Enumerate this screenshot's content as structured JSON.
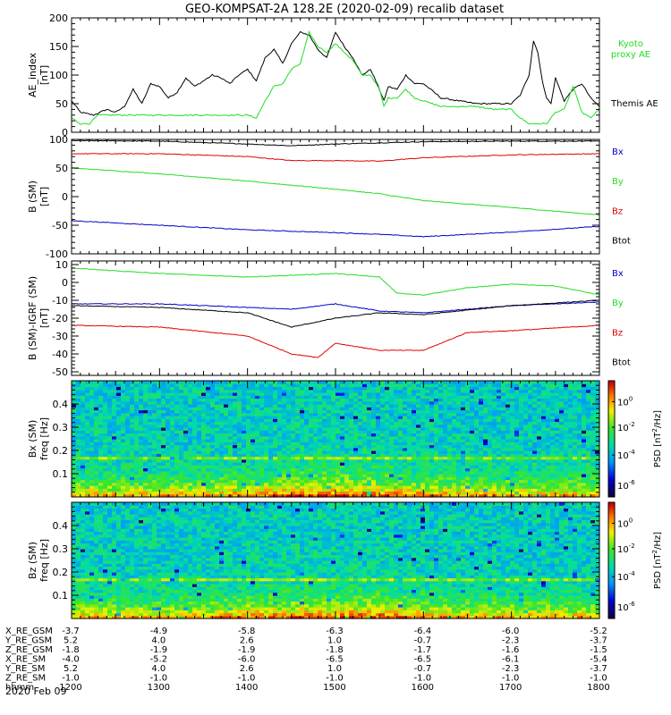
{
  "title": "GEO-KOMPSAT-2A 128.2E (2020-02-09) recalib dataset",
  "date_label": "2020 Feb 09",
  "colors": {
    "black": "#000000",
    "red": "#dd0000",
    "green": "#22dd22",
    "blue": "#0000cc"
  },
  "chart_data": [
    {
      "type": "line",
      "ylabel": "AE_index [nT]",
      "ylim": [
        0,
        200
      ],
      "yticks": [
        "0",
        "50",
        "100",
        "150",
        "200"
      ],
      "xlim": [
        1200,
        1800
      ],
      "legend": [
        "Kyoto proxy AE",
        "Themis AE"
      ],
      "series": [
        {
          "name": "Themis AE",
          "color": "#000000",
          "x": [
            1200,
            1210,
            1225,
            1240,
            1250,
            1260,
            1270,
            1280,
            1290,
            1300,
            1310,
            1320,
            1330,
            1340,
            1350,
            1360,
            1370,
            1380,
            1390,
            1400,
            1410,
            1420,
            1430,
            1440,
            1450,
            1460,
            1470,
            1480,
            1490,
            1500,
            1510,
            1520,
            1530,
            1540,
            1550,
            1555,
            1560,
            1570,
            1580,
            1590,
            1600,
            1620,
            1640,
            1660,
            1680,
            1700,
            1710,
            1720,
            1725,
            1730,
            1735,
            1740,
            1745,
            1750,
            1760,
            1770,
            1780,
            1790,
            1800
          ],
          "y": [
            55,
            35,
            30,
            40,
            35,
            45,
            75,
            50,
            85,
            80,
            60,
            70,
            95,
            80,
            90,
            100,
            95,
            85,
            100,
            110,
            90,
            130,
            145,
            120,
            155,
            175,
            170,
            145,
            130,
            175,
            150,
            130,
            100,
            110,
            75,
            55,
            80,
            75,
            100,
            85,
            85,
            60,
            55,
            50,
            50,
            50,
            65,
            100,
            160,
            140,
            90,
            60,
            50,
            95,
            55,
            75,
            85,
            60,
            45
          ]
        },
        {
          "name": "Kyoto proxy AE",
          "color": "#22dd22",
          "x": [
            1200,
            1210,
            1220,
            1230,
            1260,
            1290,
            1320,
            1350,
            1380,
            1400,
            1410,
            1420,
            1430,
            1440,
            1450,
            1460,
            1470,
            1480,
            1490,
            1500,
            1510,
            1520,
            1530,
            1540,
            1550,
            1555,
            1560,
            1570,
            1580,
            1590,
            1600,
            1620,
            1640,
            1660,
            1680,
            1700,
            1710,
            1720,
            1730,
            1740,
            1750,
            1760,
            1770,
            1780,
            1790,
            1800
          ],
          "y": [
            25,
            15,
            15,
            30,
            30,
            30,
            30,
            30,
            30,
            30,
            25,
            55,
            80,
            85,
            110,
            120,
            175,
            150,
            140,
            155,
            140,
            125,
            100,
            100,
            75,
            45,
            60,
            60,
            75,
            60,
            55,
            45,
            45,
            45,
            40,
            40,
            25,
            15,
            15,
            15,
            35,
            40,
            80,
            35,
            25,
            40
          ]
        }
      ]
    },
    {
      "type": "line",
      "ylabel": "B (SM) [nT]",
      "ylim": [
        -100,
        100
      ],
      "yticks": [
        "-100",
        "-50",
        "0",
        "50",
        "100"
      ],
      "xlim": [
        1200,
        1800
      ],
      "legend": [
        "Bx",
        "By",
        "Bz",
        "Btot"
      ],
      "series": [
        {
          "name": "Btot",
          "color": "#000000",
          "x": [
            1200,
            1300,
            1400,
            1450,
            1500,
            1550,
            1600,
            1700,
            1800
          ],
          "y": [
            98,
            97,
            92,
            89,
            92,
            94,
            96,
            97,
            97
          ]
        },
        {
          "name": "Bz",
          "color": "#dd0000",
          "x": [
            1200,
            1300,
            1400,
            1450,
            1500,
            1550,
            1600,
            1700,
            1800
          ],
          "y": [
            75,
            75,
            70,
            63,
            63,
            62,
            68,
            73,
            75
          ]
        },
        {
          "name": "By",
          "color": "#22dd22",
          "x": [
            1200,
            1300,
            1400,
            1500,
            1550,
            1600,
            1700,
            1800
          ],
          "y": [
            50,
            40,
            27,
            13,
            5,
            -7,
            -19,
            -32
          ]
        },
        {
          "name": "Bx",
          "color": "#0000cc",
          "x": [
            1200,
            1300,
            1400,
            1500,
            1550,
            1600,
            1700,
            1800
          ],
          "y": [
            -42,
            -50,
            -58,
            -63,
            -66,
            -70,
            -62,
            -52
          ]
        }
      ]
    },
    {
      "type": "line",
      "ylabel": "B (SM)-IGRF (SM) [nT]",
      "ylim": [
        -52,
        12
      ],
      "yticks": [
        "-50",
        "-40",
        "-30",
        "-20",
        "-10",
        "0",
        "10"
      ],
      "xlim": [
        1200,
        1800
      ],
      "legend": [
        "Bx",
        "By",
        "Bz",
        "Btot"
      ],
      "series": [
        {
          "name": "By",
          "color": "#22dd22",
          "x": [
            1200,
            1300,
            1400,
            1450,
            1500,
            1550,
            1570,
            1600,
            1650,
            1700,
            1750,
            1800
          ],
          "y": [
            8,
            5,
            3,
            4,
            5,
            3,
            -6,
            -7,
            -3,
            -1,
            -2,
            -7
          ]
        },
        {
          "name": "Bx",
          "color": "#0000cc",
          "x": [
            1200,
            1300,
            1400,
            1450,
            1500,
            1550,
            1600,
            1700,
            1800
          ],
          "y": [
            -12,
            -12,
            -14,
            -15,
            -12,
            -16,
            -17,
            -13,
            -11
          ]
        },
        {
          "name": "Btot",
          "color": "#000000",
          "x": [
            1200,
            1300,
            1400,
            1450,
            1500,
            1550,
            1600,
            1700,
            1800
          ],
          "y": [
            -13,
            -14,
            -17,
            -25,
            -20,
            -17,
            -18,
            -13,
            -10
          ]
        },
        {
          "name": "Bz",
          "color": "#dd0000",
          "x": [
            1200,
            1300,
            1400,
            1450,
            1480,
            1500,
            1550,
            1600,
            1650,
            1700,
            1800
          ],
          "y": [
            -24,
            -25,
            -30,
            -40,
            -42,
            -34,
            -38,
            -38,
            -28,
            -27,
            -24
          ]
        }
      ]
    },
    {
      "type": "heatmap",
      "ylabel": "Bx (SM) freq [Hz]",
      "ylim": [
        0,
        0.5
      ],
      "yticks": [
        "0.1",
        "0.2",
        "0.3",
        "0.4"
      ],
      "xlim": [
        1200,
        1800
      ],
      "colorbar_label": "PSD [nT^2/Hz]",
      "colorbar_ticks": [
        "10^0",
        "10^-2",
        "10^-4",
        "10^-6"
      ]
    },
    {
      "type": "heatmap",
      "ylabel": "Bz (SM) freq [Hz]",
      "ylim": [
        0,
        0.5
      ],
      "yticks": [
        "0.1",
        "0.2",
        "0.3",
        "0.4"
      ],
      "xlim": [
        1200,
        1800
      ],
      "colorbar_label": "PSD [nT^2/Hz]",
      "colorbar_ticks": [
        "10^0",
        "10^-2",
        "10^-4",
        "10^-6"
      ]
    }
  ],
  "ephemeris": {
    "rows": [
      {
        "label": "X_RE_GSM",
        "values": [
          "-3.7",
          "-4.9",
          "-5.8",
          "-6.3",
          "-6.4",
          "-6.0",
          "-5.2"
        ]
      },
      {
        "label": "Y_RE_GSM",
        "values": [
          "5.2",
          "4.0",
          "2.6",
          "1.0",
          "-0.7",
          "-2.3",
          "-3.7"
        ]
      },
      {
        "label": "Z_RE_GSM",
        "values": [
          "-1.8",
          "-1.9",
          "-1.9",
          "-1.8",
          "-1.7",
          "-1.6",
          "-1.5"
        ]
      },
      {
        "label": "X_RE_SM",
        "values": [
          "-4.0",
          "-5.2",
          "-6.0",
          "-6.5",
          "-6.5",
          "-6.1",
          "-5.4"
        ]
      },
      {
        "label": "Y_RE_SM",
        "values": [
          "5.2",
          "4.0",
          "2.6",
          "1.0",
          "-0.7",
          "-2.3",
          "-3.7"
        ]
      },
      {
        "label": "Z_RE_SM",
        "values": [
          "-1.0",
          "-1.0",
          "-1.0",
          "-1.0",
          "-1.0",
          "-1.0",
          "-1.0"
        ]
      },
      {
        "label": "hhmm",
        "values": [
          "1200",
          "1300",
          "1400",
          "1500",
          "1600",
          "1700",
          "1800"
        ]
      }
    ]
  }
}
